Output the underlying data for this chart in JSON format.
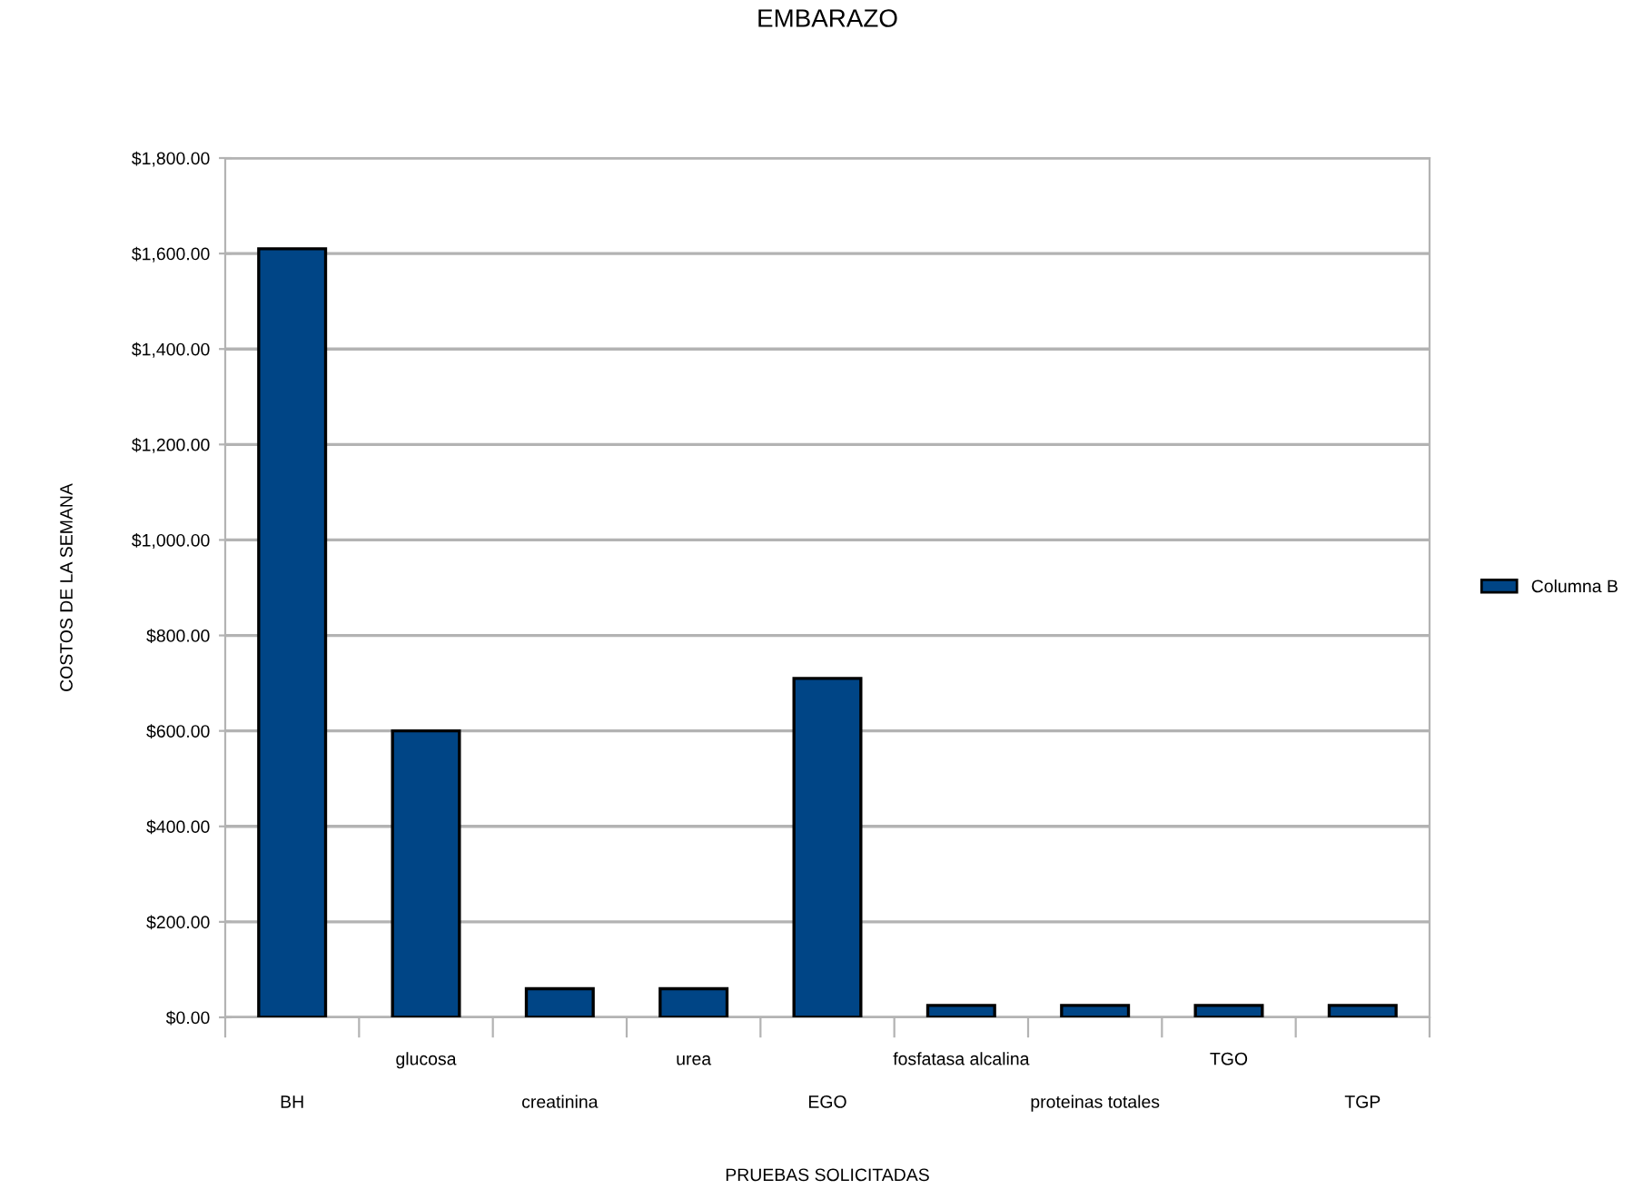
{
  "chart_data": {
    "type": "bar",
    "title": "EMBARAZO",
    "xlabel": "PRUEBAS SOLICITADAS",
    "ylabel": "COSTOS DE LA SEMANA",
    "categories": [
      "BH",
      "glucosa",
      "creatinina",
      "urea",
      "EGO",
      "fosfatasa alcalina",
      "proteinas totales",
      "TGO",
      "TGP"
    ],
    "series": [
      {
        "name": "Columna B",
        "color": "#004586",
        "values": [
          1610,
          600,
          60,
          60,
          710,
          25,
          25,
          25,
          25
        ]
      }
    ],
    "ylim": [
      0,
      1800
    ],
    "yticks": [
      {
        "value": 0,
        "label": "$0.00"
      },
      {
        "value": 200,
        "label": "$200.00"
      },
      {
        "value": 400,
        "label": "$400.00"
      },
      {
        "value": 600,
        "label": "$600.00"
      },
      {
        "value": 800,
        "label": "$800.00"
      },
      {
        "value": 1000,
        "label": "$1,000.00"
      },
      {
        "value": 1200,
        "label": "$1,200.00"
      },
      {
        "value": 1400,
        "label": "$1,400.00"
      },
      {
        "value": 1600,
        "label": "$1,600.00"
      },
      {
        "value": 1800,
        "label": "$1,800.00"
      }
    ],
    "grid": "y",
    "legend": "right"
  }
}
